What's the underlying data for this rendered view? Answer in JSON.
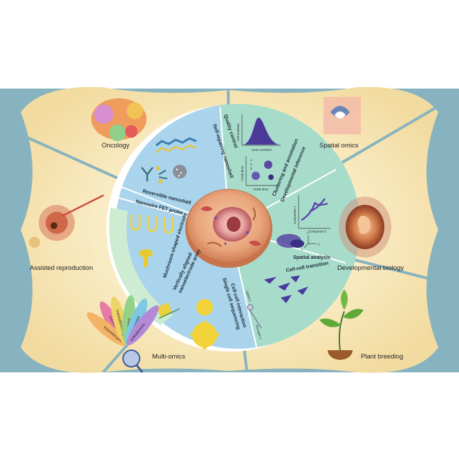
{
  "outer_ring": {
    "oncology": "Oncology",
    "spatial_omics": "Spatial omics",
    "assisted_reproduction": "Assisted reproduction",
    "developmental_biology": "Developmental biology",
    "multi_omics": "Multi-omics",
    "plant_breeding": "Plant breeding"
  },
  "inner_left": {
    "reversible_nanoshell": "Reversible nanoshell",
    "nanowire_fet_probe": "Nanowire FET probe",
    "mushroom_shaped_electrode": "Mushroom-shaped electrode",
    "vertically_aligned_array_line1": "Vertically aligned",
    "vertically_aligned_array_line2": "nanoelectrode array",
    "single_cell_sequencing": "Single cell sequencing"
  },
  "inner_right": {
    "self_repairing_nanoshell": "Self-repairing nanoshell",
    "quality_control": "Quality control",
    "clustering_annotation": "Clustering and annotation",
    "developmental_inference": "Developmental inference",
    "spatial_analysis": "Spatial analysis",
    "cell_cell_transition": "Cell-cell transition",
    "cell_cell_interaction": "Cell-cell interaction",
    "ligand": "Ligand 1",
    "receptor": "Receptor 1"
  },
  "plots": {
    "qc_ylabel": "Cell numbers",
    "qc_xlabel": "Gene numbers",
    "tsne_ylabel": "t-SNE dim2",
    "tsne_xlabel": "t-SNE dim1",
    "legend_1": "1",
    "legend_2": "2",
    "legend_3": "3",
    "comp_ylabel": "Component 1",
    "comp_xlabel": "Component 2",
    "axis_x": "x",
    "axis_y": "y",
    "axis_z": "z"
  },
  "omics_petals": {
    "transcriptomics": "scTranscriptomics",
    "genomics": "scGenomics",
    "epigenomics": "scEpigenomics",
    "proteomics": "scProteomics",
    "metabolomics": "scMetabolomics",
    "multiomics": "scMultiomics"
  },
  "colors": {
    "outer_fill": "#f6e6b7",
    "frame": "#86b3bf",
    "inner_left": "#a9d4ec",
    "inner_right": "#a7dccb",
    "membrane": "#d0ecd0",
    "cell": "#e8a57d"
  }
}
